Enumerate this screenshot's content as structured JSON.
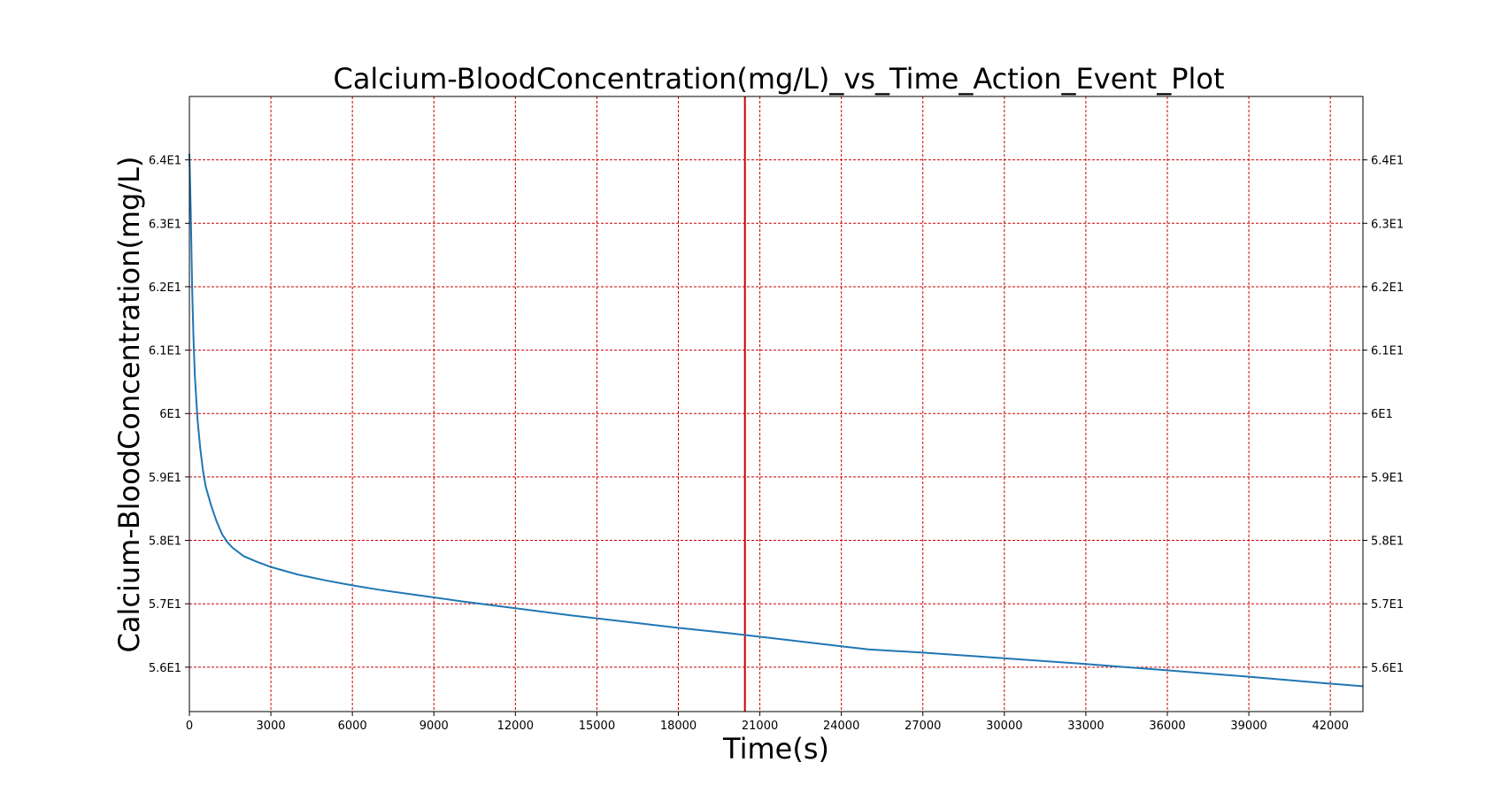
{
  "chart_data": {
    "type": "line",
    "title": "Calcium-BloodConcentration(mg/L)_vs_Time_Action_Event_Plot",
    "xlabel": "Time(s)",
    "ylabel": "Calcium-BloodConcentration(mg/L)",
    "xlim": [
      0,
      43200
    ],
    "ylim": [
      55.3,
      65.0
    ],
    "x_ticks": [
      0,
      3000,
      6000,
      9000,
      12000,
      15000,
      18000,
      21000,
      24000,
      27000,
      30000,
      33000,
      36000,
      39000,
      42000
    ],
    "x_tick_labels": [
      "0",
      "3000",
      "6000",
      "9000",
      "12000",
      "15000",
      "18000",
      "21000",
      "24000",
      "27000",
      "30000",
      "33000",
      "36000",
      "39000",
      "42000"
    ],
    "y_ticks": [
      56,
      57,
      58,
      59,
      60,
      61,
      62,
      63,
      64
    ],
    "y_tick_labels": [
      "5.6E1",
      "5.7E1",
      "5.8E1",
      "5.9E1",
      "6E1",
      "6.1E1",
      "6.2E1",
      "6.3E1",
      "6.4E1"
    ],
    "grid": true,
    "grid_color": "#cc0000",
    "line_color": "#1f77b4",
    "event_line_color": "#cc0000",
    "event_x": 20450,
    "series": [
      {
        "x": [
          0,
          50,
          100,
          150,
          200,
          300,
          400,
          500,
          600,
          800,
          1000,
          1200,
          1400,
          1600,
          2000,
          2500,
          3000,
          4000,
          5000,
          6000,
          7000,
          8000,
          9000,
          10000,
          12000,
          14000,
          16000,
          18000,
          20000,
          22000,
          24000,
          25000,
          27000,
          30000,
          33000,
          36000,
          39000,
          42000,
          43200
        ],
        "y": [
          64.1,
          63.2,
          62.0,
          61.2,
          60.6,
          59.9,
          59.45,
          59.1,
          58.85,
          58.55,
          58.3,
          58.1,
          57.97,
          57.88,
          57.75,
          57.66,
          57.58,
          57.46,
          57.37,
          57.29,
          57.22,
          57.16,
          57.1,
          57.04,
          56.93,
          56.82,
          56.72,
          56.62,
          56.53,
          56.43,
          56.33,
          56.28,
          56.23,
          56.14,
          56.05,
          55.95,
          55.85,
          55.74,
          55.7
        ]
      }
    ]
  }
}
